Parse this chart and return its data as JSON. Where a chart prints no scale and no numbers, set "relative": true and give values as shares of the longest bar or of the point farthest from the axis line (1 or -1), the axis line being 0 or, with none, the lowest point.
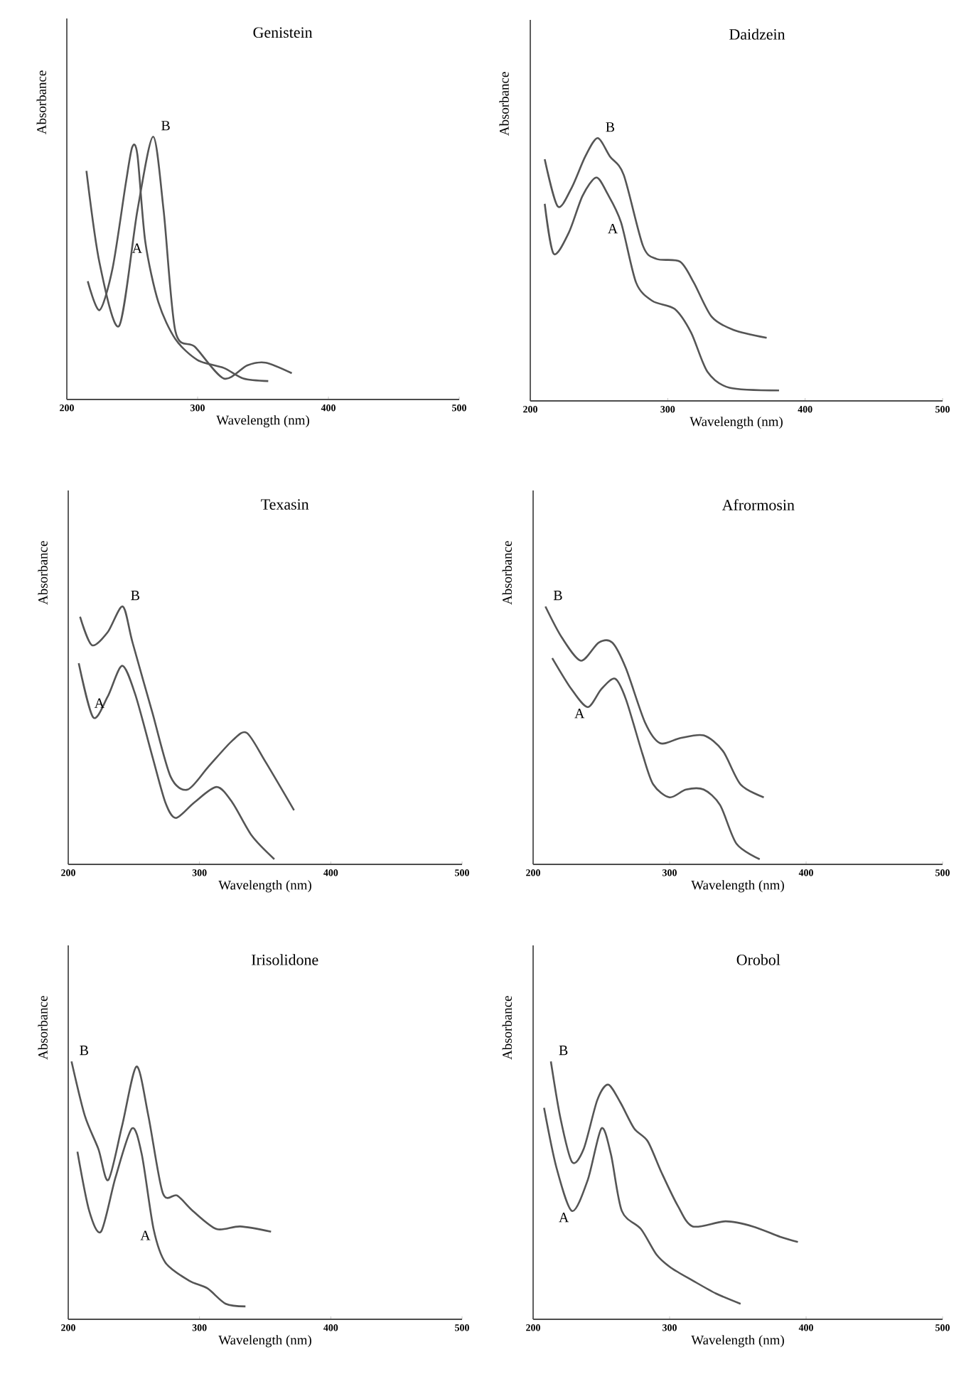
{
  "chart_data": [
    {
      "type": "line",
      "title": "Genistein",
      "xlabel": "Wavelength (nm)",
      "ylabel": "Absorbance",
      "relative": true,
      "xlim": [
        200,
        500
      ],
      "xticks": [
        200,
        300,
        400,
        500
      ],
      "series": [
        {
          "name": "A",
          "color": "#555555",
          "x": [
            216,
            225,
            235,
            245,
            250,
            254,
            260,
            270,
            283,
            300,
            320,
            335,
            354
          ],
          "values": [
            0.45,
            0.34,
            0.5,
            0.82,
            0.96,
            0.93,
            0.6,
            0.37,
            0.23,
            0.15,
            0.12,
            0.08,
            0.07
          ]
        },
        {
          "name": "B",
          "color": "#555555",
          "x": [
            215,
            225,
            240,
            254,
            266,
            274,
            283,
            298,
            320,
            338,
            352,
            372
          ],
          "values": [
            0.87,
            0.52,
            0.28,
            0.72,
            1.0,
            0.72,
            0.26,
            0.2,
            0.08,
            0.13,
            0.14,
            0.1
          ]
        }
      ]
    },
    {
      "type": "line",
      "title": "Daidzein",
      "xlabel": "Wavelength (nm)",
      "ylabel": "Absorbance",
      "relative": true,
      "xlim": [
        200,
        500
      ],
      "xticks": [
        200,
        300,
        400,
        500
      ],
      "series": [
        {
          "name": "A",
          "color": "#555555",
          "x": [
            210.5,
            217,
            228,
            238,
            248,
            256,
            266,
            277,
            289,
            305,
            317,
            329,
            345,
            381
          ],
          "values": [
            0.75,
            0.56,
            0.64,
            0.78,
            0.85,
            0.79,
            0.68,
            0.45,
            0.38,
            0.35,
            0.26,
            0.11,
            0.05,
            0.04
          ]
        },
        {
          "name": "B",
          "color": "#555555",
          "x": [
            210.5,
            220,
            230,
            240,
            249,
            258,
            268,
            282,
            292,
            309,
            319,
            332,
            348,
            372
          ],
          "values": [
            0.92,
            0.74,
            0.81,
            0.93,
            1.0,
            0.93,
            0.86,
            0.59,
            0.54,
            0.53,
            0.45,
            0.32,
            0.27,
            0.24
          ]
        }
      ]
    },
    {
      "type": "line",
      "title": "Texasin",
      "xlabel": "Wavelength (nm)",
      "ylabel": "Absorbance",
      "relative": true,
      "xlim": [
        200,
        500
      ],
      "xticks": [
        200,
        300,
        400,
        500
      ],
      "series": [
        {
          "name": "A",
          "color": "#555555",
          "x": [
            208,
            219,
            230,
            241,
            251,
            264,
            274,
            282,
            296,
            313,
            325,
            340,
            357
          ],
          "values": [
            0.78,
            0.57,
            0.65,
            0.77,
            0.66,
            0.42,
            0.24,
            0.18,
            0.24,
            0.3,
            0.24,
            0.11,
            0.02
          ]
        },
        {
          "name": "B",
          "color": "#555555",
          "x": [
            209,
            218,
            230,
            241.5,
            249,
            264,
            278,
            291,
            307,
            325,
            336,
            350,
            372
          ],
          "values": [
            0.96,
            0.85,
            0.9,
            1.0,
            0.86,
            0.59,
            0.34,
            0.29,
            0.38,
            0.48,
            0.51,
            0.4,
            0.21
          ]
        }
      ]
    },
    {
      "type": "line",
      "title": "Afrormosin",
      "xlabel": "Wavelength (nm)",
      "ylabel": "Absorbance",
      "relative": true,
      "xlim": [
        200,
        500
      ],
      "xticks": [
        200,
        300,
        400,
        500
      ],
      "series": [
        {
          "name": "A",
          "color": "#555555",
          "x": [
            214,
            228,
            240,
            250,
            260,
            268,
            280,
            288,
            300,
            312,
            325,
            337,
            349,
            366
          ],
          "values": [
            0.8,
            0.68,
            0.61,
            0.68,
            0.72,
            0.64,
            0.43,
            0.31,
            0.26,
            0.29,
            0.29,
            0.23,
            0.08,
            0.02
          ]
        },
        {
          "name": "B",
          "color": "#555555",
          "x": [
            209,
            221,
            235,
            248,
            258,
            268,
            282,
            293,
            308,
            325,
            339,
            352,
            369
          ],
          "values": [
            1.0,
            0.88,
            0.79,
            0.86,
            0.86,
            0.76,
            0.55,
            0.47,
            0.49,
            0.5,
            0.44,
            0.31,
            0.26
          ]
        }
      ]
    },
    {
      "type": "line",
      "title": "Irisolidone",
      "xlabel": "Wavelength (nm)",
      "ylabel": "Absorbance",
      "relative": true,
      "xlim": [
        200,
        500
      ],
      "xticks": [
        200,
        300,
        400,
        500
      ],
      "series": [
        {
          "name": "A",
          "color": "#555555",
          "x": [
            207,
            216,
            225,
            236,
            248.5,
            256,
            265,
            274,
            292,
            306,
            320,
            335
          ],
          "values": [
            0.65,
            0.42,
            0.34,
            0.55,
            0.74,
            0.64,
            0.35,
            0.22,
            0.15,
            0.12,
            0.06,
            0.05
          ]
        },
        {
          "name": "B",
          "color": "#555555",
          "x": [
            202.5,
            212.6,
            223,
            230.5,
            241,
            252,
            261,
            272,
            283,
            295,
            313,
            331,
            354.5
          ],
          "values": [
            1.0,
            0.79,
            0.66,
            0.54,
            0.75,
            0.98,
            0.79,
            0.49,
            0.48,
            0.42,
            0.35,
            0.36,
            0.34
          ]
        }
      ]
    },
    {
      "type": "line",
      "title": "Orobol",
      "xlabel": "Wavelength (nm)",
      "ylabel": "Absorbance",
      "relative": true,
      "xlim": [
        200,
        500
      ],
      "xticks": [
        200,
        300,
        400,
        500
      ],
      "series": [
        {
          "name": "A",
          "color": "#555555",
          "x": [
            208,
            217,
            228.5,
            240,
            250,
            257,
            265,
            279,
            290.5,
            301,
            317,
            334,
            352
          ],
          "values": [
            0.82,
            0.59,
            0.42,
            0.54,
            0.74,
            0.64,
            0.42,
            0.35,
            0.25,
            0.2,
            0.15,
            0.1,
            0.06
          ]
        },
        {
          "name": "B",
          "color": "#555555",
          "x": [
            213,
            220,
            228.5,
            237,
            247,
            255,
            264,
            274,
            284,
            294,
            306,
            317,
            341,
            361,
            381,
            394
          ],
          "values": [
            1.0,
            0.78,
            0.61,
            0.66,
            0.85,
            0.91,
            0.84,
            0.74,
            0.69,
            0.57,
            0.44,
            0.36,
            0.38,
            0.36,
            0.32,
            0.3
          ]
        }
      ]
    }
  ]
}
